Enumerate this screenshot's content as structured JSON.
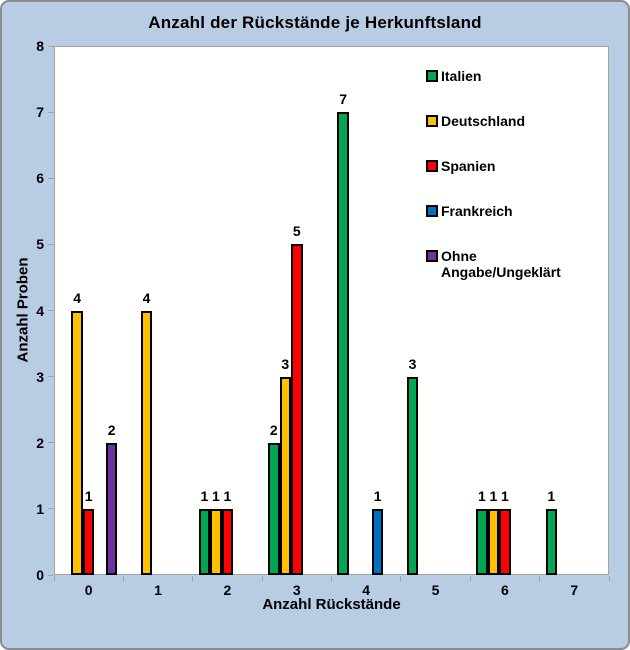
{
  "chart_data": {
    "type": "bar",
    "title": "Anzahl der Rückstände je Herkunftsland",
    "xlabel": "Anzahl Rückstände",
    "ylabel": "Anzahl Proben",
    "categories": [
      "0",
      "1",
      "2",
      "3",
      "4",
      "5",
      "6",
      "7"
    ],
    "yticks": [
      "0",
      "1",
      "2",
      "3",
      "4",
      "5",
      "6",
      "7",
      "8"
    ],
    "ylim": [
      0,
      8
    ],
    "grid": false,
    "legend_position": "top-right-inside",
    "bar_value_labels": "shown above each bar, zero values omitted",
    "series": [
      {
        "name": "Italien",
        "color": "#00a651",
        "values": [
          0,
          0,
          1,
          2,
          7,
          3,
          1,
          1
        ]
      },
      {
        "name": "Deutschland",
        "color": "#ffc000",
        "values": [
          4,
          4,
          1,
          3,
          0,
          0,
          1,
          0
        ]
      },
      {
        "name": "Spanien",
        "color": "#ff0000",
        "values": [
          1,
          0,
          1,
          5,
          0,
          0,
          1,
          0
        ]
      },
      {
        "name": "Frankreich",
        "color": "#0070c0",
        "values": [
          0,
          0,
          0,
          0,
          1,
          0,
          0,
          0
        ]
      },
      {
        "name": "Ohne Angabe/Ungeklärt",
        "color": "#7030a0",
        "values": [
          2,
          0,
          0,
          0,
          0,
          0,
          0,
          0
        ]
      }
    ]
  },
  "colors": {
    "background": "#b8cce4",
    "plot_background": "#fffffe",
    "frame_border": "#8b8b8b",
    "axis_line": "#a3a3a3",
    "bar_outline": "#000000",
    "text": "#000000"
  }
}
